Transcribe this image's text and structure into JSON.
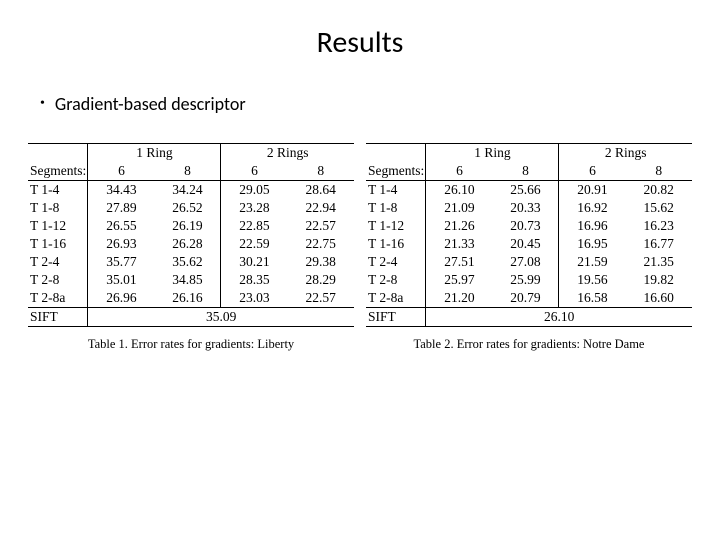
{
  "title": "Results",
  "bullet": "Gradient-based descriptor",
  "tables": {
    "left": {
      "caption": "Table 1. Error rates for gradients: Liberty",
      "segments_label": "Segments:",
      "group1": "1 Ring",
      "group2": "2 Rings",
      "col_labels": [
        "6",
        "8",
        "6",
        "8"
      ],
      "rows": [
        {
          "label": "T 1-4",
          "v": [
            "34.43",
            "34.24",
            "29.05",
            "28.64"
          ]
        },
        {
          "label": "T 1-8",
          "v": [
            "27.89",
            "26.52",
            "23.28",
            "22.94"
          ]
        },
        {
          "label": "T 1-12",
          "v": [
            "26.55",
            "26.19",
            "22.85",
            "22.57"
          ]
        },
        {
          "label": "T 1-16",
          "v": [
            "26.93",
            "26.28",
            "22.59",
            "22.75"
          ]
        },
        {
          "label": "T 2-4",
          "v": [
            "35.77",
            "35.62",
            "30.21",
            "29.38"
          ]
        },
        {
          "label": "T 2-8",
          "v": [
            "35.01",
            "34.85",
            "28.35",
            "28.29"
          ]
        },
        {
          "label": "T 2-8a",
          "v": [
            "26.96",
            "26.16",
            "23.03",
            "22.57"
          ]
        }
      ],
      "sift_label": "SIFT",
      "sift_value": "35.09"
    },
    "right": {
      "caption": "Table 2. Error rates for gradients: Notre Dame",
      "segments_label": "Segments:",
      "group1": "1 Ring",
      "group2": "2 Rings",
      "col_labels": [
        "6",
        "8",
        "6",
        "8"
      ],
      "rows": [
        {
          "label": "T 1-4",
          "v": [
            "26.10",
            "25.66",
            "20.91",
            "20.82"
          ]
        },
        {
          "label": "T 1-8",
          "v": [
            "21.09",
            "20.33",
            "16.92",
            "15.62"
          ]
        },
        {
          "label": "T 1-12",
          "v": [
            "21.26",
            "20.73",
            "16.96",
            "16.23"
          ]
        },
        {
          "label": "T 1-16",
          "v": [
            "21.33",
            "20.45",
            "16.95",
            "16.77"
          ]
        },
        {
          "label": "T 2-4",
          "v": [
            "27.51",
            "27.08",
            "21.59",
            "21.35"
          ]
        },
        {
          "label": "T 2-8",
          "v": [
            "25.97",
            "25.99",
            "19.56",
            "19.82"
          ]
        },
        {
          "label": "T 2-8a",
          "v": [
            "21.20",
            "20.79",
            "16.58",
            "16.60"
          ]
        }
      ],
      "sift_label": "SIFT",
      "sift_value": "26.10"
    }
  },
  "style": {
    "background": "#ffffff",
    "text_color": "#000000",
    "rule_color": "#000000",
    "title_font": "Calibri",
    "body_font": "Times New Roman",
    "title_fontsize_pt": 30,
    "bullet_fontsize_pt": 18,
    "table_fontsize_pt": 13.5,
    "caption_fontsize_pt": 12.5
  }
}
